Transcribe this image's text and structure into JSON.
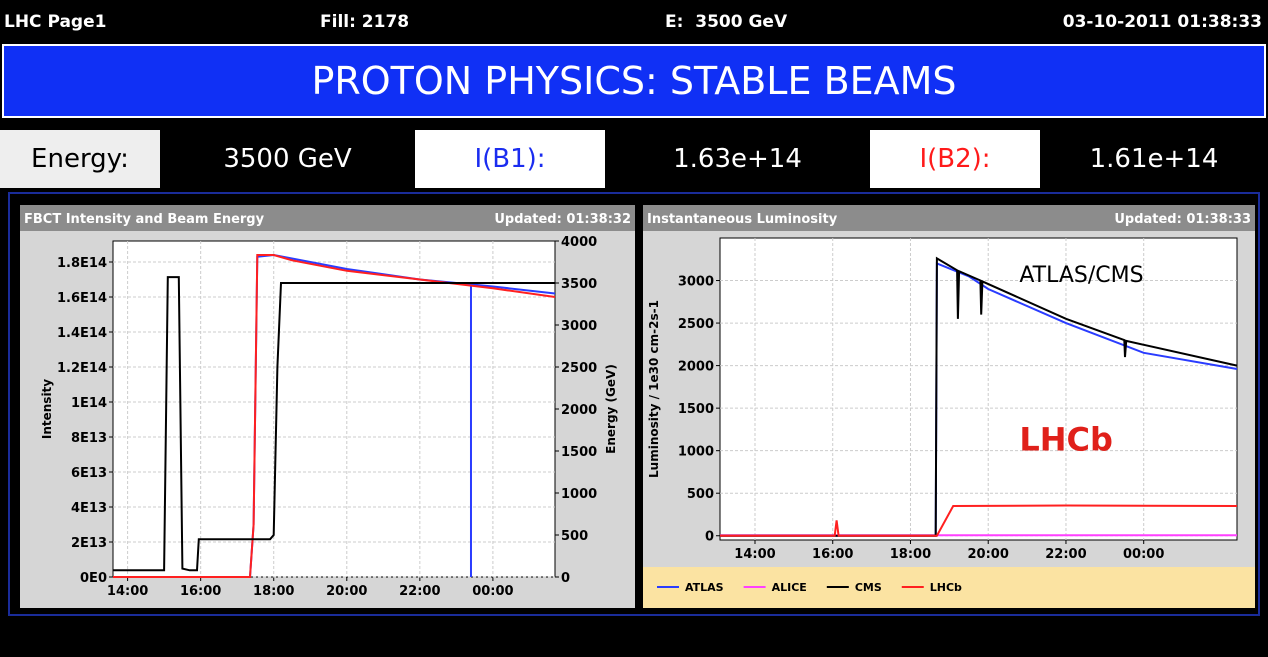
{
  "header": {
    "page": "LHC Page1",
    "fill": "Fill: 2178",
    "energy": "E:  3500 GeV",
    "datetime": "03-10-2011 01:38:33"
  },
  "banner": "PROTON PHYSICS: STABLE BEAMS",
  "status": {
    "energy_label": "Energy:",
    "energy_value": "3500 GeV",
    "b1_label": "I(B1):",
    "b1_value": "1.63e+14",
    "b2_label": "I(B2):",
    "b2_value": "1.61e+14"
  },
  "chart_data": [
    {
      "type": "line",
      "title": "FBCT Intensity and Beam Energy",
      "updated": "Updated: 01:38:32",
      "ylabel": "Intensity",
      "y2label": "Energy (GeV)",
      "xlim": [
        13.6,
        25.7
      ],
      "xticks": [
        {
          "value": 14,
          "label": "14:00"
        },
        {
          "value": 16,
          "label": "16:00"
        },
        {
          "value": 18,
          "label": "18:00"
        },
        {
          "value": 20,
          "label": "20:00"
        },
        {
          "value": 22,
          "label": "22:00"
        },
        {
          "value": 24,
          "label": "00:00"
        }
      ],
      "ylim": [
        0,
        192000000000000.0
      ],
      "yticks": [
        {
          "value": 0,
          "label": "0E0"
        },
        {
          "value": 20000000000000.0,
          "label": "2E13"
        },
        {
          "value": 40000000000000.0,
          "label": "4E13"
        },
        {
          "value": 60000000000000.0,
          "label": "6E13"
        },
        {
          "value": 80000000000000.0,
          "label": "8E13"
        },
        {
          "value": 100000000000000.0,
          "label": "1E14"
        },
        {
          "value": 120000000000000.0,
          "label": "1.2E14"
        },
        {
          "value": 140000000000000.0,
          "label": "1.4E14"
        },
        {
          "value": 160000000000000.0,
          "label": "1.6E14"
        },
        {
          "value": 180000000000000.0,
          "label": "1.8E14"
        }
      ],
      "y2lim": [
        0,
        4000
      ],
      "y2ticks": [
        0,
        500,
        1000,
        1500,
        2000,
        2500,
        3000,
        3500,
        4000
      ],
      "grid": true,
      "cursor_x": 23.4,
      "series": [
        {
          "color": "#2a3cff",
          "x": [
            13.6,
            17.35,
            17.45,
            17.55,
            18.0,
            18.5,
            20,
            22,
            24,
            25.7
          ],
          "values": [
            0,
            0,
            30000000000000.0,
            183000000000000.0,
            184000000000000.0,
            182000000000000.0,
            176000000000000.0,
            170000000000000.0,
            166000000000000.0,
            162000000000000.0
          ]
        },
        {
          "color": "#ff2020",
          "x": [
            13.6,
            17.35,
            17.45,
            17.55,
            18.0,
            18.5,
            20,
            22,
            24,
            25.7
          ],
          "values": [
            0,
            0,
            30000000000000.0,
            184000000000000.0,
            184000000000000.0,
            181000000000000.0,
            175000000000000.0,
            170000000000000.0,
            165000000000000.0,
            160000000000000.0
          ]
        },
        {
          "color": "#000000",
          "axis": "y2",
          "x": [
            13.6,
            15.0,
            15.1,
            15.25,
            15.4,
            15.5,
            15.7,
            15.9,
            15.95,
            17.9,
            18.0,
            18.1,
            18.2,
            25.7
          ],
          "values": [
            80,
            80,
            3570,
            3570,
            3570,
            100,
            80,
            80,
            450,
            450,
            500,
            2500,
            3500,
            3500
          ]
        }
      ]
    },
    {
      "type": "line",
      "title": "Instantaneous Luminosity",
      "updated": "Updated: 01:38:33",
      "ylabel": "Luminosity / 1e30 cm-2s-1",
      "xlim": [
        13.1,
        26.4
      ],
      "xticks": [
        {
          "value": 14,
          "label": "14:00"
        },
        {
          "value": 16,
          "label": "16:00"
        },
        {
          "value": 18,
          "label": "18:00"
        },
        {
          "value": 20,
          "label": "20:00"
        },
        {
          "value": 22,
          "label": "22:00"
        },
        {
          "value": 24,
          "label": "00:00"
        }
      ],
      "ylim": [
        -50,
        3500
      ],
      "yticks": [
        0,
        500,
        1000,
        1500,
        2000,
        2500,
        3000
      ],
      "grid": true,
      "legend": "bottom",
      "annotations": [
        {
          "text": "ATLAS/CMS",
          "x": 20.8,
          "y": 2980,
          "color": "#000000"
        },
        {
          "text": "LHCb",
          "x": 20.8,
          "y": 1000,
          "color": "#e0201a"
        }
      ],
      "series": [
        {
          "name": "ATLAS",
          "color": "#2a3cff",
          "x": [
            13.1,
            18.65,
            18.68,
            19.5,
            20,
            22,
            24,
            26.4
          ],
          "values": [
            0,
            0,
            3200,
            3050,
            2900,
            2500,
            2150,
            1960
          ]
        },
        {
          "name": "ALICE",
          "color": "#ff40ff",
          "x": [
            13.1,
            18.68,
            26.4
          ],
          "values": [
            5,
            5,
            5
          ]
        },
        {
          "name": "CMS",
          "color": "#000000",
          "x": [
            13.1,
            18.65,
            18.68,
            19.2,
            19.22,
            19.25,
            19.8,
            19.82,
            19.85,
            22,
            23.5,
            23.52,
            23.55,
            26.4
          ],
          "values": [
            0,
            0,
            3260,
            3120,
            2550,
            3110,
            3000,
            2600,
            2990,
            2550,
            2300,
            2100,
            2290,
            2000
          ]
        },
        {
          "name": "LHCb",
          "color": "#ff2020",
          "x": [
            13.1,
            16.05,
            16.1,
            16.15,
            18.68,
            19.1,
            22,
            26.4
          ],
          "values": [
            0,
            0,
            180,
            0,
            0,
            350,
            355,
            350
          ]
        }
      ]
    }
  ]
}
